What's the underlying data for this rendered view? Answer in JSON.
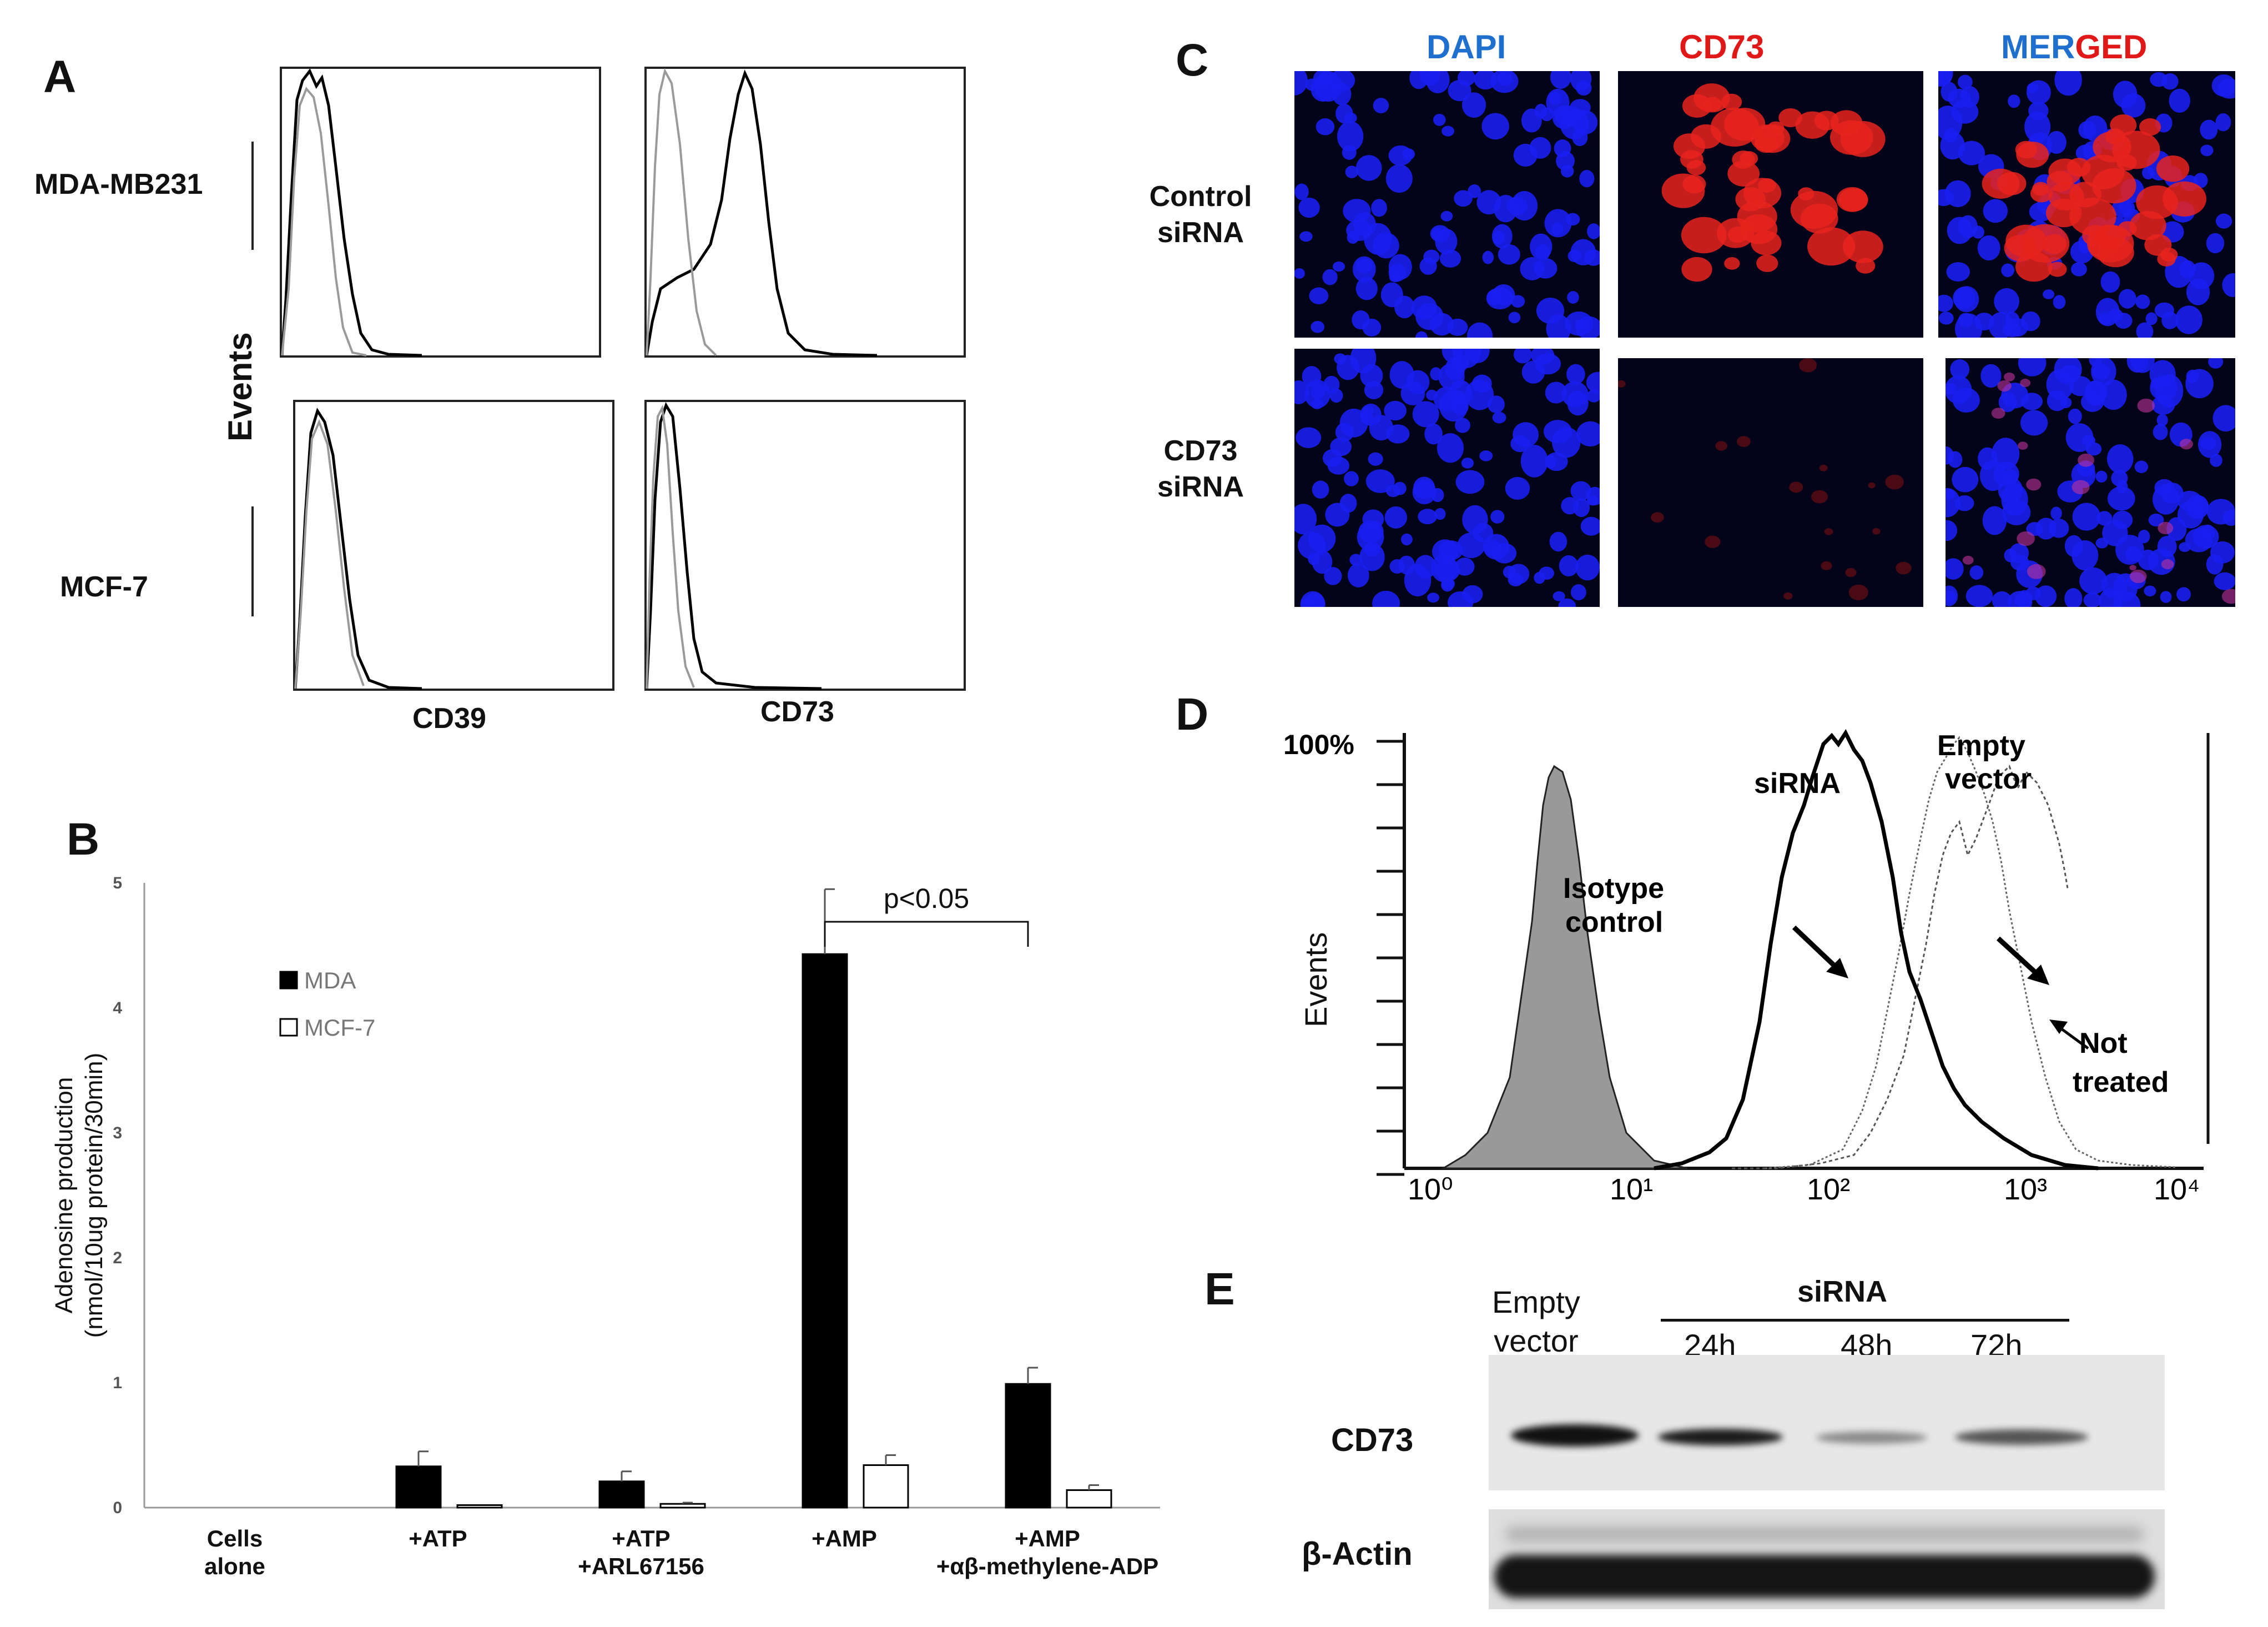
{
  "panels": {
    "A": {
      "letter": "A",
      "rows": [
        "MDA-MB231",
        "MCF-7"
      ],
      "y_label": "Events",
      "x_labels": [
        "CD39",
        "CD73"
      ]
    },
    "B": {
      "letter": "B",
      "legend": [
        "MDA",
        "MCF-7"
      ],
      "significance": "p<0.05",
      "categories": [
        {
          "lines": [
            "Cells",
            "alone"
          ]
        },
        {
          "lines": [
            "+ATP"
          ]
        },
        {
          "lines": [
            "+ATP",
            "+ARL67156"
          ]
        },
        {
          "lines": [
            "+AMP"
          ]
        },
        {
          "lines": [
            "+AMP",
            "+αβ-methylene-ADP"
          ]
        }
      ]
    },
    "C": {
      "letter": "C",
      "col_dapi": "DAPI",
      "col_cd73": "CD73",
      "merged_part1": "MER",
      "merged_part2": "GED",
      "rows": [
        {
          "lines": [
            "Control",
            "siRNA"
          ]
        },
        {
          "lines": [
            "CD73",
            "siRNA"
          ]
        }
      ]
    },
    "D": {
      "letter": "D",
      "pct": "100%",
      "y_label": "Events",
      "annotations": {
        "isotype": [
          "Isotype",
          "control"
        ],
        "sirna": "siRNA",
        "empty": [
          "Empty",
          "vector"
        ],
        "not_treated": [
          "Not",
          "treated"
        ]
      },
      "x_ticks": [
        "10⁰",
        "10¹",
        "10²",
        "10³",
        "10⁴"
      ]
    },
    "E": {
      "letter": "E",
      "empty_vector": [
        "Empty",
        "vector"
      ],
      "sirna": "siRNA",
      "times": [
        "24h",
        "48h",
        "72h"
      ],
      "rows": [
        "CD73",
        "β-Actin"
      ]
    }
  },
  "colors": {
    "dapi": "#1f6fcf",
    "cd73": "#e01818"
  },
  "chart_data": {
    "type": "bar",
    "title": "",
    "ylabel": "Adenosine production (nmol/10ug protein/30min)",
    "xlabel": "",
    "ylim": [
      0,
      5
    ],
    "yticks": [
      "0",
      "1",
      "2",
      "3",
      "4",
      "5"
    ],
    "categories": [
      "Cells alone",
      "+ATP",
      "+ATP +ARL67156",
      "+AMP",
      "+AMP +αβ-methylene-ADP"
    ],
    "series": [
      {
        "name": "MDA",
        "values": [
          0,
          0.33,
          0.21,
          4.43,
          0.99
        ],
        "errors": [
          0,
          0.12,
          0.08,
          0.52,
          0.13
        ],
        "color": "#000000"
      },
      {
        "name": "MCF-7",
        "values": [
          0,
          0.02,
          0.03,
          0.34,
          0.14
        ],
        "errors": [
          0,
          0,
          0.01,
          0.08,
          0.04
        ],
        "color": "#ffffff"
      }
    ],
    "legend_position": "upper-left"
  }
}
